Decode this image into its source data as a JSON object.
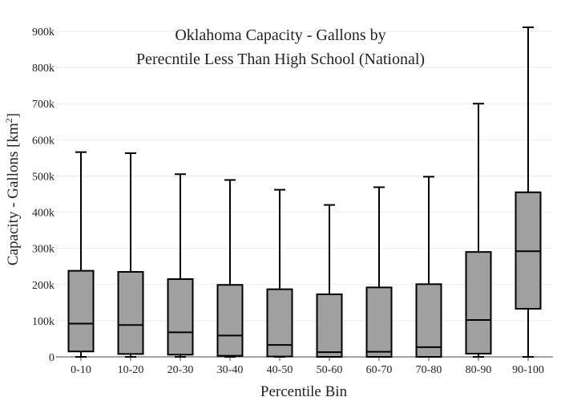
{
  "chart_data": {
    "type": "box",
    "title_lines": [
      "Oklahoma Capacity - Gallons by",
      "Perecntile Less Than High School (National)"
    ],
    "xlabel": "Percentile Bin",
    "ylabel_main": "Capacity - Gallons  [km",
    "ylabel_sup": "2",
    "ylabel_end": "]",
    "ylim": [
      0,
      920000
    ],
    "y_ticks": [
      0,
      100000,
      200000,
      300000,
      400000,
      500000,
      600000,
      700000,
      800000,
      900000
    ],
    "y_tick_labels": [
      "0",
      "100k",
      "200k",
      "300k",
      "400k",
      "500k",
      "600k",
      "700k",
      "800k",
      "900k"
    ],
    "grid": true,
    "box_color": "#a0a0a0",
    "line_color": "#000000",
    "categories": [
      "0-10",
      "10-20",
      "20-30",
      "30-40",
      "40-50",
      "50-60",
      "60-70",
      "70-80",
      "80-90",
      "90-100"
    ],
    "boxes": [
      {
        "min": 0,
        "q1": 15000,
        "median": 92000,
        "q3": 238000,
        "max": 566000
      },
      {
        "min": 0,
        "q1": 8000,
        "median": 88000,
        "q3": 235000,
        "max": 563000
      },
      {
        "min": 0,
        "q1": 6000,
        "median": 68000,
        "q3": 215000,
        "max": 505000
      },
      {
        "min": 0,
        "q1": 3000,
        "median": 59000,
        "q3": 199000,
        "max": 489000
      },
      {
        "min": 0,
        "q1": 1000,
        "median": 33000,
        "q3": 187000,
        "max": 462000
      },
      {
        "min": 0,
        "q1": 0,
        "median": 13000,
        "q3": 173000,
        "max": 420000
      },
      {
        "min": 0,
        "q1": 0,
        "median": 14000,
        "q3": 192000,
        "max": 469000
      },
      {
        "min": 0,
        "q1": 0,
        "median": 27000,
        "q3": 201000,
        "max": 498000
      },
      {
        "min": 0,
        "q1": 9000,
        "median": 102000,
        "q3": 290000,
        "max": 700000
      },
      {
        "min": 0,
        "q1": 133000,
        "median": 292000,
        "q3": 455000,
        "max": 911000
      }
    ]
  }
}
